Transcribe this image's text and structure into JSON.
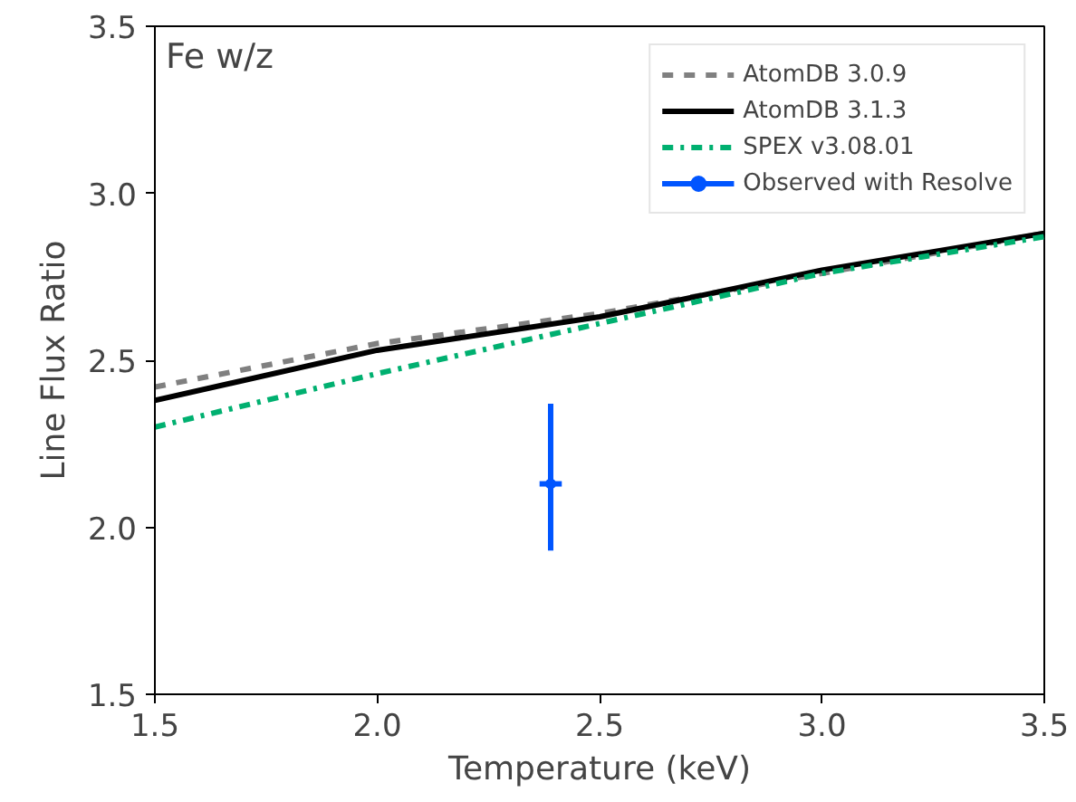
{
  "chart_data": {
    "type": "line",
    "xlabel": "Temperature (keV)",
    "ylabel": "Line Flux Ratio",
    "annotations": [
      "Fe w/z"
    ],
    "x": [
      1.5,
      2.0,
      2.5,
      3.0,
      3.5
    ],
    "series": [
      {
        "name": "AtomDB 3.0.9",
        "color": "#808080",
        "line_style": "dashed",
        "values": [
          2.42,
          2.55,
          2.64,
          2.76,
          2.88
        ]
      },
      {
        "name": "AtomDB 3.1.3",
        "color": "#000000",
        "line_style": "solid",
        "values": [
          2.38,
          2.53,
          2.63,
          2.77,
          2.88
        ]
      },
      {
        "name": "SPEX v3.08.01",
        "color": "#00b070",
        "line_style": "dashdot",
        "values": [
          2.3,
          2.46,
          2.61,
          2.76,
          2.87
        ]
      },
      {
        "name": "Observed with Resolve",
        "type": "scatter",
        "color": "#0055ff",
        "x": [
          2.39
        ],
        "values": [
          2.13
        ],
        "errors": [
          [
            1.93,
            2.37
          ]
        ],
        "xerrors": [
          0.025
        ]
      }
    ],
    "xlim": [
      1.5,
      3.5
    ],
    "ylim": [
      1.5,
      3.5
    ],
    "xticks": [
      {
        "value": 1.5,
        "label": "1.5"
      },
      {
        "value": 2.0,
        "label": "2.0"
      },
      {
        "value": 2.5,
        "label": "2.5"
      },
      {
        "value": 3.0,
        "label": "3.0"
      },
      {
        "value": 3.5,
        "label": "3.5"
      }
    ],
    "yticks": [
      {
        "value": 1.5,
        "label": "1.5"
      },
      {
        "value": 2.0,
        "label": "2.0"
      },
      {
        "value": 2.5,
        "label": "2.5"
      },
      {
        "value": 3.0,
        "label": "3.0"
      },
      {
        "value": 3.5,
        "label": "3.5"
      }
    ],
    "grid": false,
    "legend": "top right"
  }
}
